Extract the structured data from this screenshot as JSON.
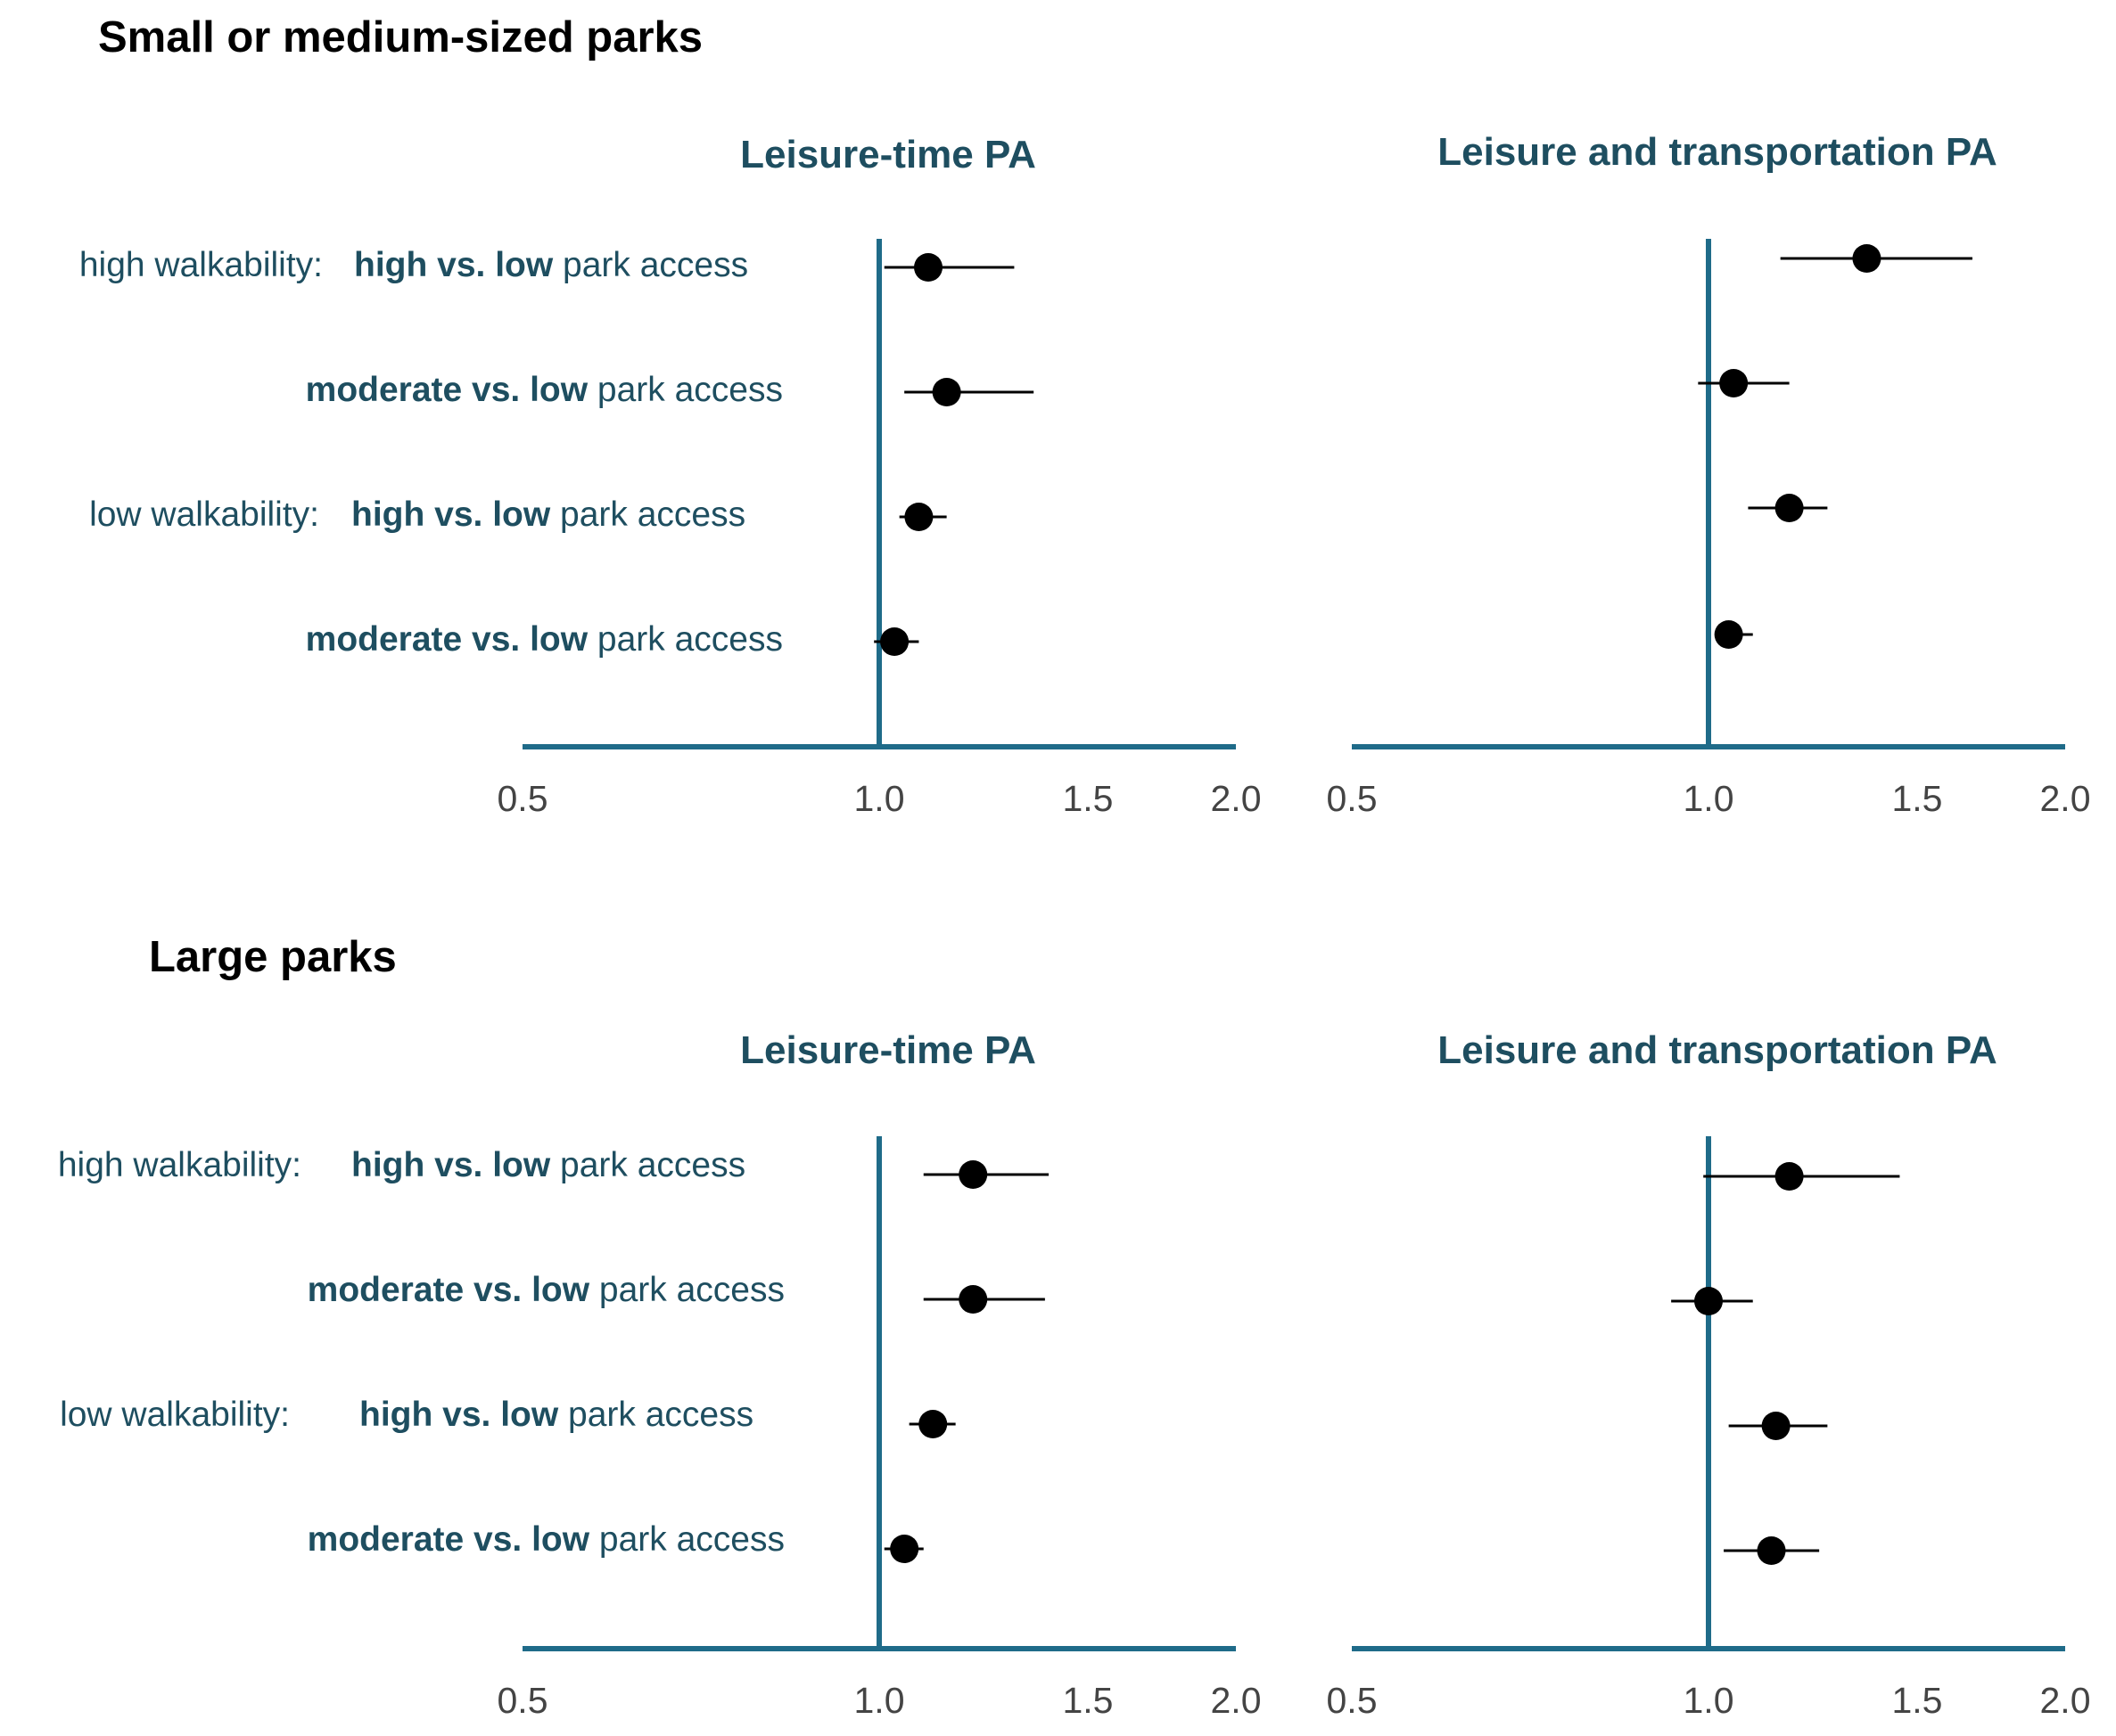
{
  "sections": [
    {
      "title": "Small or medium-sized parks",
      "rows": [
        {
          "prefix": "high walkability:",
          "bold": "high vs. low",
          "rest": " park access"
        },
        {
          "prefix": "",
          "bold": "moderate vs. low",
          "rest": " park access"
        },
        {
          "prefix": "low walkability:",
          "bold": "high vs. low",
          "rest": " park access"
        },
        {
          "prefix": "",
          "bold": "moderate vs. low",
          "rest": " park access"
        }
      ]
    },
    {
      "title": "Large parks",
      "rows": [
        {
          "prefix": "high walkability:",
          "bold": "high vs. low",
          "rest": " park access"
        },
        {
          "prefix": "",
          "bold": "moderate vs. low",
          "rest": " park access"
        },
        {
          "prefix": "low walkability:",
          "bold": "high vs. low",
          "rest": " park access"
        },
        {
          "prefix": "",
          "bold": "moderate vs. low",
          "rest": " park access"
        }
      ]
    }
  ],
  "colors": {
    "axis": "#1f6b89",
    "label_text": "#1e4e60",
    "points": "#000000"
  },
  "chart_data": [
    {
      "type": "scatter",
      "section": "Small or medium-sized parks",
      "title": "Leisure-time PA",
      "x_ticks": [
        "0.5",
        "1.0",
        "1.5",
        "2.0"
      ],
      "xlim": [
        0.5,
        2.0
      ],
      "x_scale": "log",
      "reference_line": 1.0,
      "estimates": [
        1.1,
        1.14,
        1.08,
        1.03
      ],
      "ci_low": [
        1.01,
        1.05,
        1.04,
        0.99
      ],
      "ci_high": [
        1.3,
        1.35,
        1.14,
        1.08
      ]
    },
    {
      "type": "scatter",
      "section": "Small or medium-sized parks",
      "title": "Leisure and transportation PA",
      "x_ticks": [
        "0.5",
        "1.0",
        "1.5",
        "2.0"
      ],
      "xlim": [
        0.5,
        2.0
      ],
      "x_scale": "log",
      "reference_line": 1.0,
      "estimates": [
        1.36,
        1.05,
        1.17,
        1.04
      ],
      "ci_low": [
        1.15,
        0.98,
        1.08,
        1.02
      ],
      "ci_high": [
        1.67,
        1.17,
        1.26,
        1.09
      ]
    },
    {
      "type": "scatter",
      "section": "Large parks",
      "title": "Leisure-time PA",
      "x_ticks": [
        "0.5",
        "1.0",
        "1.5",
        "2.0"
      ],
      "xlim": [
        0.5,
        2.0
      ],
      "x_scale": "log",
      "reference_line": 1.0,
      "estimates": [
        1.2,
        1.2,
        1.11,
        1.05
      ],
      "ci_low": [
        1.09,
        1.09,
        1.06,
        1.01
      ],
      "ci_high": [
        1.39,
        1.38,
        1.16,
        1.09
      ]
    },
    {
      "type": "scatter",
      "section": "Large parks",
      "title": "Leisure and transportation PA",
      "x_ticks": [
        "0.5",
        "1.0",
        "1.5",
        "2.0"
      ],
      "xlim": [
        0.5,
        2.0
      ],
      "x_scale": "log",
      "reference_line": 1.0,
      "estimates": [
        1.17,
        1.0,
        1.14,
        1.13
      ],
      "ci_low": [
        0.99,
        0.93,
        1.04,
        1.03
      ],
      "ci_high": [
        1.45,
        1.09,
        1.26,
        1.24
      ]
    }
  ]
}
